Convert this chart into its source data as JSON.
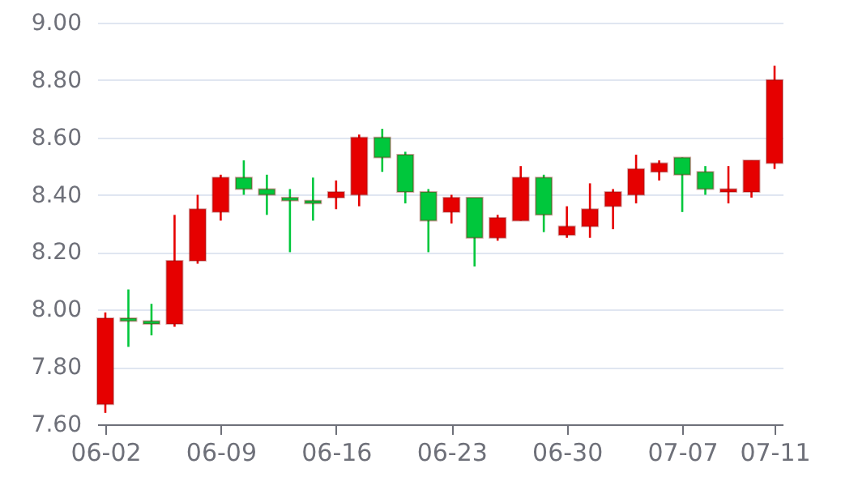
{
  "chart_data": {
    "type": "candlestick",
    "categories": [
      "06-02",
      null,
      null,
      null,
      null,
      "06-09",
      null,
      null,
      null,
      null,
      "06-16",
      null,
      null,
      null,
      null,
      "06-23",
      null,
      null,
      null,
      null,
      "06-30",
      null,
      null,
      null,
      null,
      "07-07",
      null,
      null,
      null,
      "07-11"
    ],
    "ohlc": [
      [
        7.67,
        7.99,
        7.64,
        7.97
      ],
      [
        7.97,
        8.07,
        7.87,
        7.96
      ],
      [
        7.96,
        8.02,
        7.91,
        7.95
      ],
      [
        7.95,
        8.33,
        7.94,
        8.17
      ],
      [
        8.17,
        8.4,
        8.16,
        8.35
      ],
      [
        8.34,
        8.47,
        8.31,
        8.46
      ],
      [
        8.46,
        8.52,
        8.4,
        8.42
      ],
      [
        8.42,
        8.47,
        8.33,
        8.4
      ],
      [
        8.39,
        8.42,
        8.2,
        8.38
      ],
      [
        8.38,
        8.46,
        8.31,
        8.37
      ],
      [
        8.39,
        8.45,
        8.35,
        8.41
      ],
      [
        8.4,
        8.61,
        8.36,
        8.6
      ],
      [
        8.6,
        8.63,
        8.48,
        8.53
      ],
      [
        8.54,
        8.55,
        8.37,
        8.41
      ],
      [
        8.41,
        8.42,
        8.2,
        8.31
      ],
      [
        8.34,
        8.4,
        8.3,
        8.39
      ],
      [
        8.39,
        8.39,
        8.15,
        8.25
      ],
      [
        8.25,
        8.33,
        8.24,
        8.32
      ],
      [
        8.31,
        8.5,
        8.31,
        8.46
      ],
      [
        8.46,
        8.47,
        8.27,
        8.33
      ],
      [
        8.26,
        8.36,
        8.25,
        8.29
      ],
      [
        8.29,
        8.44,
        8.25,
        8.35
      ],
      [
        8.36,
        8.42,
        8.28,
        8.41
      ],
      [
        8.4,
        8.54,
        8.37,
        8.49
      ],
      [
        8.48,
        8.52,
        8.45,
        8.51
      ],
      [
        8.53,
        8.53,
        8.34,
        8.47
      ],
      [
        8.48,
        8.5,
        8.4,
        8.42
      ],
      [
        8.41,
        8.5,
        8.37,
        8.42
      ],
      [
        8.41,
        8.52,
        8.39,
        8.52
      ],
      [
        8.51,
        8.85,
        8.49,
        8.8
      ]
    ],
    "colors": [
      "#e60000",
      "#00c73c",
      "#00c73c",
      "#e60000",
      "#e60000",
      "#e60000",
      "#00c73c",
      "#00c73c",
      "#00c73c",
      "#00c73c",
      "#e60000",
      "#e60000",
      "#00c73c",
      "#00c73c",
      "#00c73c",
      "#e60000",
      "#00c73c",
      "#e60000",
      "#e60000",
      "#00c73c",
      "#e60000",
      "#e60000",
      "#e60000",
      "#e60000",
      "#e60000",
      "#00c73c",
      "#00c73c",
      "#e60000",
      "#e60000",
      "#e60000"
    ],
    "ylim": [
      7.6,
      9.0
    ],
    "yticks": [
      {
        "value": 7.6,
        "label": "7.60"
      },
      {
        "value": 7.8,
        "label": "7.80"
      },
      {
        "value": 8.0,
        "label": "8.00"
      },
      {
        "value": 8.2,
        "label": "8.20"
      },
      {
        "value": 8.4,
        "label": "8.40"
      },
      {
        "value": 8.6,
        "label": "8.60"
      },
      {
        "value": 8.8,
        "label": "8.80"
      },
      {
        "value": 9.0,
        "label": "9.00"
      }
    ],
    "grid": "y"
  }
}
